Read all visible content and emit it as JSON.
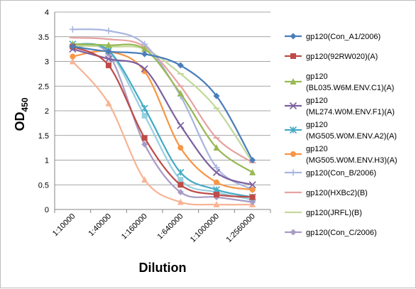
{
  "chart_data": {
    "type": "line",
    "title": "",
    "xlabel": "Dilution",
    "ylabel": "OD",
    "ylabel_sub": "450",
    "ylim": [
      0,
      4
    ],
    "yticks": [
      "0",
      "0.5",
      "1",
      "1.5",
      "2",
      "2.5",
      "3",
      "3.5",
      "4"
    ],
    "grid": "horizontal",
    "legend_position": "right",
    "categories": [
      "1:10000",
      "1:40000",
      "1:160000",
      "1:640000",
      "1:1000000",
      "1:2560000"
    ],
    "series": [
      {
        "name": "gp120(Con_A1/2006)",
        "legend_lines": [
          "gp120(Con_A1/2006)"
        ],
        "color": "#4a7ebb",
        "marker": "diamond",
        "values": [
          3.3,
          3.2,
          3.15,
          2.92,
          2.3,
          1.0
        ]
      },
      {
        "name": "gp120(92RW020)(A)",
        "legend_lines": [
          "gp120(92RW020)(A)"
        ],
        "color": "#be4b48",
        "marker": "square",
        "values": [
          3.3,
          2.92,
          1.45,
          0.5,
          0.3,
          0.25
        ]
      },
      {
        "name": "gp120 (BL035.W6M.ENV.C1)(A)",
        "legend_lines": [
          "gp120",
          "(BL035.W6M.ENV.C1)(A)"
        ],
        "color": "#98b954",
        "marker": "triangle",
        "values": [
          3.35,
          3.33,
          3.25,
          2.35,
          1.25,
          0.75
        ]
      },
      {
        "name": "gp120 (ML274.W0M.ENV.F1)(A)",
        "legend_lines": [
          "gp120",
          "(ML274.W0M.ENV.F1)(A)"
        ],
        "color": "#7d60a0",
        "marker": "x",
        "values": [
          3.25,
          3.05,
          2.85,
          1.7,
          0.75,
          0.5
        ]
      },
      {
        "name": "gp120 (MG505.W0M.ENV.A2)(A)",
        "legend_lines": [
          "gp120",
          "(MG505.W0M.ENV.A2)(A)"
        ],
        "color": "#46aac5",
        "marker": "star",
        "values": [
          3.35,
          3.22,
          2.05,
          0.75,
          0.4,
          0.25
        ]
      },
      {
        "name": "gp120 (MG505.W0M.ENV.H3)(A)",
        "legend_lines": [
          "gp120",
          "(MG505.W0M.ENV.H3)(A)"
        ],
        "color": "#f79646",
        "marker": "circle",
        "values": [
          3.1,
          3.2,
          2.8,
          1.25,
          0.55,
          0.4
        ]
      },
      {
        "name": "gp120(Con_B/2006)",
        "legend_lines": [
          "gp120(Con_B/2006)"
        ],
        "color": "#a9b6e0",
        "marker": "plus",
        "values": [
          3.65,
          3.62,
          3.35,
          2.3,
          0.85,
          0.4
        ]
      },
      {
        "name": "gp120(HXBc2)(B)",
        "legend_lines": [
          "gp120(HXBc2)(B)"
        ],
        "color": "#e6a3a1",
        "marker": "dash",
        "values": [
          3.48,
          3.45,
          3.3,
          2.5,
          1.45,
          0.95
        ]
      },
      {
        "name": "gp120(JRFL)(B)",
        "legend_lines": [
          "gp120(JRFL)(B)"
        ],
        "color": "#c3d99a",
        "marker": "dash",
        "values": [
          3.32,
          3.3,
          3.25,
          2.75,
          2.05,
          0.95
        ]
      },
      {
        "name": "gp120(Con_C/2006)",
        "legend_lines": [
          "gp120(Con_C/2006)"
        ],
        "color": "#a99cc4",
        "marker": "diamond",
        "values": [
          3.28,
          3.15,
          1.32,
          0.35,
          0.25,
          0.15
        ]
      },
      {
        "name": "",
        "legend_lines": [],
        "color": "#f7b494",
        "marker": "triangle",
        "values": [
          3.0,
          2.15,
          0.6,
          0.15,
          0.1,
          0.1
        ]
      },
      {
        "name": "",
        "legend_lines": [],
        "color": "#98d0e0",
        "marker": "square",
        "values": [
          3.3,
          3.2,
          1.9,
          0.6,
          0.35,
          0.2
        ]
      }
    ]
  }
}
